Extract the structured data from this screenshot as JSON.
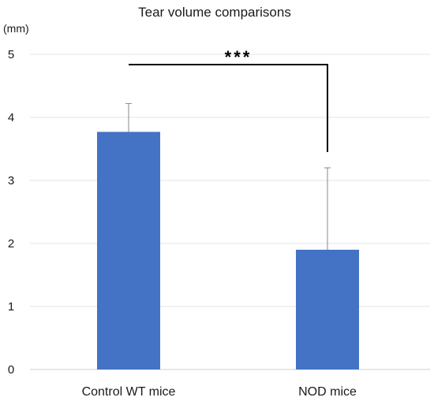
{
  "chart_data": {
    "type": "bar",
    "title": "Tear volume comparisons",
    "ylabel": "(mm)",
    "xlabel": "",
    "categories": [
      "Control WT mice",
      "NOD mice"
    ],
    "values": [
      3.77,
      1.9
    ],
    "error_upper": [
      0.45,
      1.3
    ],
    "ylim": [
      0,
      5
    ],
    "yticks": [
      0,
      1,
      2,
      3,
      4,
      5
    ],
    "grid": true,
    "legend": "none",
    "bar_color": "#4472c4",
    "significance": {
      "label": "***",
      "between": [
        0,
        1
      ]
    }
  }
}
